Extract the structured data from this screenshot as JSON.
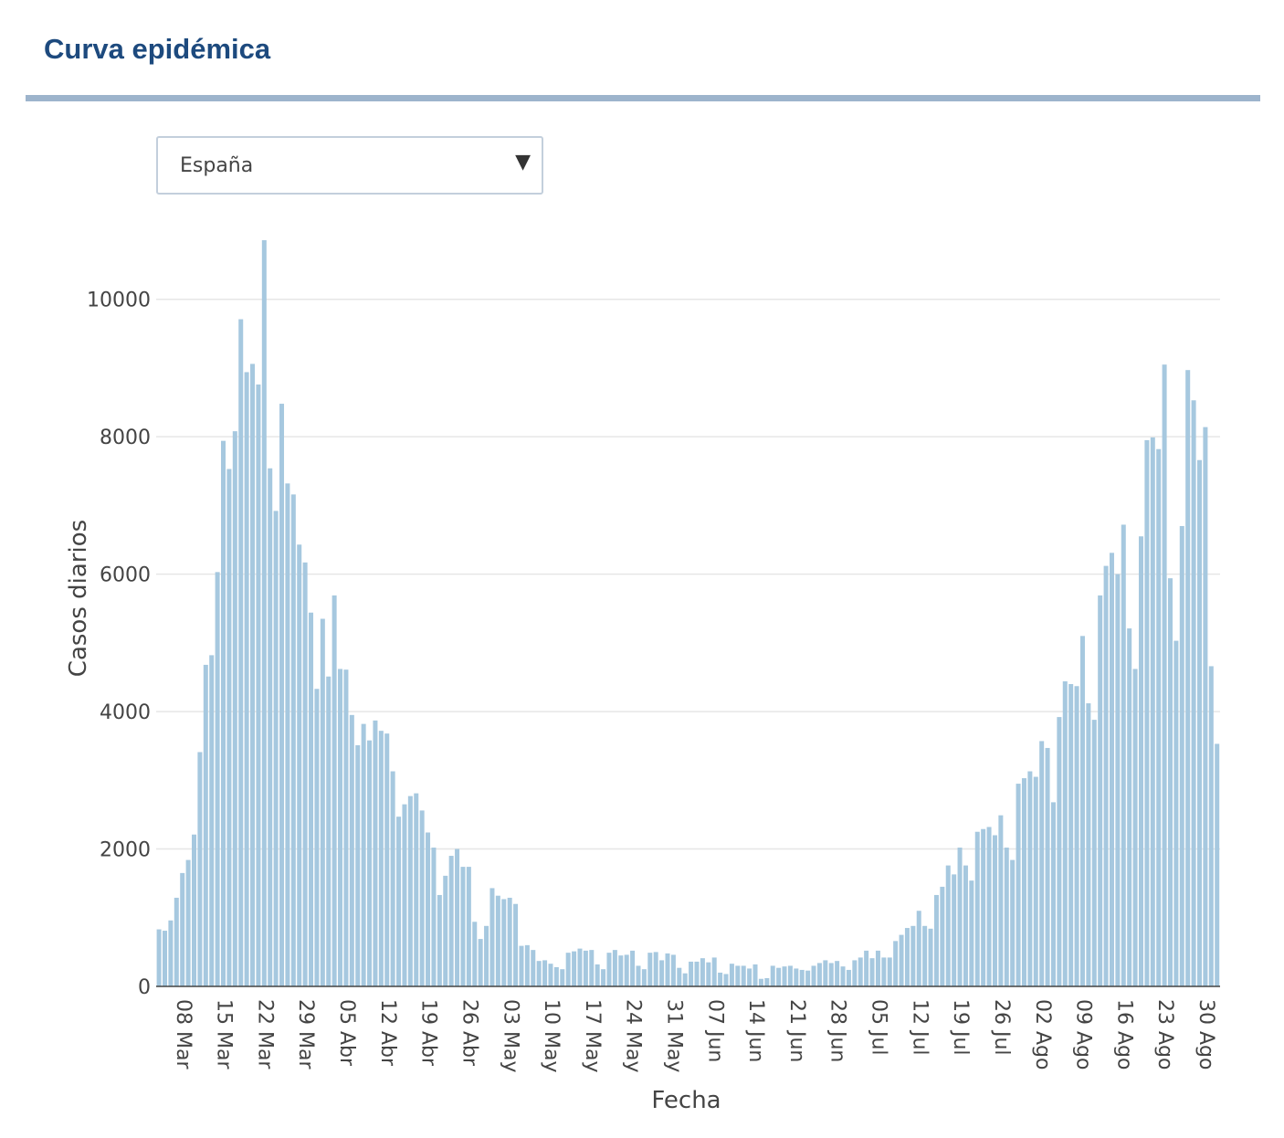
{
  "header": {
    "title": "Curva epidémica"
  },
  "selector": {
    "value": "España",
    "arrow_icon": "triangle-down-icon"
  },
  "colors": {
    "bar": "#a6c8df",
    "title": "#1d4a7e",
    "grid": "#e6e6e6",
    "axis_text": "#444444"
  },
  "chart_data": {
    "type": "bar",
    "title": "",
    "xlabel": "Fecha",
    "ylabel": "Casos diarios",
    "ylim": [
      0,
      10900
    ],
    "yticks": [
      0,
      2000,
      4000,
      6000,
      8000,
      10000
    ],
    "grid": true,
    "x_start": "2020-03-04",
    "x_end": "2020-08-31",
    "xtick_labels": [
      "08 Mar",
      "15 Mar",
      "22 Mar",
      "29 Mar",
      "05 Abr",
      "12 Abr",
      "19 Abr",
      "26 Abr",
      "03 May",
      "10 May",
      "17 May",
      "24 May",
      "31 May",
      "07 Jun",
      "14 Jun",
      "21 Jun",
      "28 Jun",
      "05 Jul",
      "12 Jul",
      "19 Jul",
      "26 Jul",
      "02 Ago",
      "09 Ago",
      "16 Ago",
      "23 Ago",
      "30 Ago"
    ],
    "values": [
      830,
      810,
      960,
      1290,
      1650,
      1840,
      2210,
      3410,
      4680,
      4820,
      6030,
      7940,
      7530,
      8080,
      9710,
      8940,
      9060,
      8760,
      10860,
      7540,
      6920,
      8480,
      7320,
      7160,
      6430,
      6170,
      5440,
      4330,
      5350,
      4510,
      5690,
      4620,
      4610,
      3950,
      3510,
      3820,
      3580,
      3870,
      3720,
      3680,
      3130,
      2470,
      2650,
      2770,
      2810,
      2560,
      2240,
      2020,
      1330,
      1610,
      1900,
      2000,
      1740,
      1740,
      940,
      690,
      880,
      1430,
      1320,
      1270,
      1290,
      1200,
      590,
      600,
      530,
      370,
      380,
      330,
      280,
      250,
      490,
      510,
      550,
      520,
      530,
      320,
      250,
      490,
      530,
      450,
      460,
      520,
      300,
      250,
      490,
      500,
      380,
      480,
      460,
      270,
      190,
      360,
      360,
      410,
      350,
      420,
      200,
      180,
      330,
      300,
      300,
      260,
      320,
      110,
      120,
      300,
      270,
      290,
      300,
      260,
      240,
      230,
      300,
      340,
      380,
      340,
      370,
      290,
      240,
      380,
      420,
      520,
      410,
      520,
      420,
      420,
      660,
      750,
      850,
      880,
      1100,
      880,
      840,
      1330,
      1450,
      1760,
      1630,
      2020,
      1760,
      1540,
      2250,
      2290,
      2320,
      2200,
      2490,
      2020,
      1840,
      2950,
      3030,
      3130,
      3050,
      3570,
      3470,
      2680,
      3920,
      4440,
      4400,
      4370,
      5100,
      4120,
      3880,
      5690,
      6120,
      6310,
      6000,
      6720,
      5210,
      4620,
      6550,
      7950,
      7990,
      7820,
      9050,
      5940,
      5030,
      6700,
      8970,
      8530,
      7660,
      8140,
      4660,
      3530
    ]
  }
}
